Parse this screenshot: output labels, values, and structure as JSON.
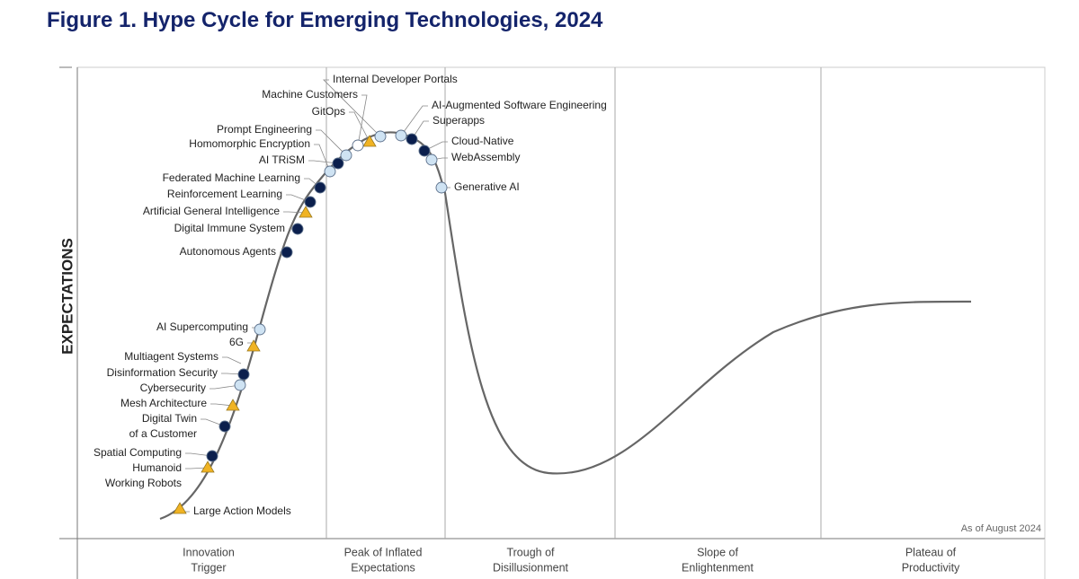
{
  "title": "Figure 1. Hype Cycle for Emerging Technologies, 2024",
  "y_axis_label": "EXPECTATIONS",
  "note": "As of August 2024",
  "phases": [
    [
      "Innovation",
      "Trigger"
    ],
    [
      "Peak of Inflated",
      "Expectations"
    ],
    [
      "Trough of",
      "Disillusionment"
    ],
    [
      "Slope of",
      "Enlightenment"
    ],
    [
      "Plateau of",
      "Productivity"
    ]
  ],
  "technologies": [
    [
      "Large Action Models"
    ],
    [
      "Humanoid",
      "Working Robots"
    ],
    [
      "Spatial Computing"
    ],
    [
      "Digital Twin",
      "of a Customer"
    ],
    [
      "Mesh Architecture"
    ],
    [
      "Cybersecurity"
    ],
    [
      "Disinformation Security"
    ],
    [
      "Multiagent Systems"
    ],
    [
      "6G"
    ],
    [
      "AI Supercomputing"
    ],
    [
      "Autonomous Agents"
    ],
    [
      "Digital Immune System"
    ],
    [
      "Artificial General Intelligence"
    ],
    [
      "Reinforcement Learning"
    ],
    [
      "Federated Machine Learning"
    ],
    [
      "AI TRiSM"
    ],
    [
      "Homomorphic Encryption"
    ],
    [
      "Prompt Engineering"
    ],
    [
      "GitOps"
    ],
    [
      "Machine Customers"
    ],
    [
      "Internal Developer Portals"
    ],
    [
      "AI-Augmented Software Engineering"
    ],
    [
      "Superapps"
    ],
    [
      "Cloud-Native"
    ],
    [
      "WebAssembly"
    ],
    [
      "Generative AI"
    ]
  ]
}
